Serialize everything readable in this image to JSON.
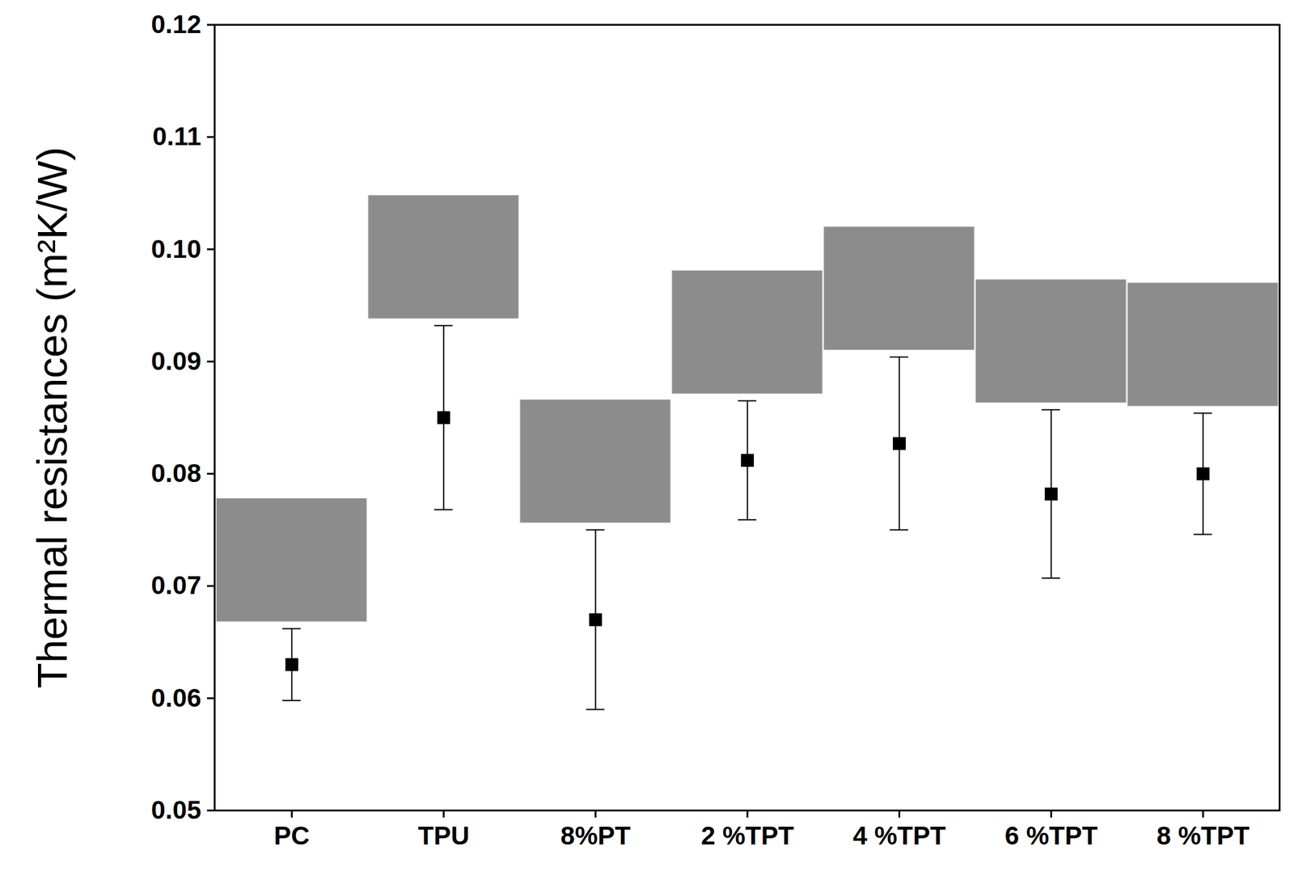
{
  "chart_data": {
    "type": "scatter",
    "categories": [
      "PC",
      "TPU",
      "8%PT",
      "2 %TPT",
      "4 %TPT",
      "6 %TPT",
      "8 %TPT"
    ],
    "values": [
      0.063,
      0.085,
      0.067,
      0.0812,
      0.0827,
      0.0782,
      0.08
    ],
    "error": [
      0.0032,
      0.0082,
      0.008,
      0.0053,
      0.0077,
      0.0075,
      0.0054
    ],
    "ylabel": "Thermal resistances (m²K/W)",
    "ylim": [
      0.05,
      0.12
    ],
    "yticks": [
      0.05,
      0.06,
      0.07,
      0.08,
      0.09,
      {
        "value": 0.1,
        "label": "0.10"
      },
      0.11,
      0.12
    ],
    "color": "#000000",
    "marker": "square",
    "grid": false
  }
}
